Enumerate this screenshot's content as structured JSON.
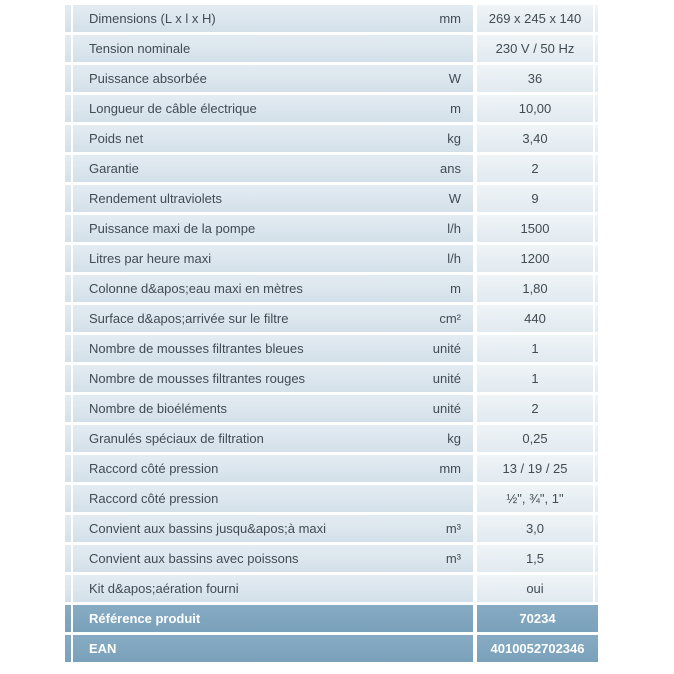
{
  "table": {
    "rows": [
      {
        "label": "Dimensions (L x l x H)",
        "unit": "mm",
        "value": "269 x 245 x 140"
      },
      {
        "label": "Tension nominale",
        "unit": "",
        "value": "230 V / 50 Hz"
      },
      {
        "label": "Puissance absorbée",
        "unit": "W",
        "value": "36"
      },
      {
        "label": "Longueur de câble électrique",
        "unit": "m",
        "value": "10,00"
      },
      {
        "label": "Poids net",
        "unit": "kg",
        "value": "3,40"
      },
      {
        "label": "Garantie",
        "unit": "ans",
        "value": "2"
      },
      {
        "label": "Rendement ultraviolets",
        "unit": "W",
        "value": "9"
      },
      {
        "label": "Puissance maxi de la pompe",
        "unit": "l/h",
        "value": "1500"
      },
      {
        "label": "Litres par heure maxi",
        "unit": "l/h",
        "value": "1200"
      },
      {
        "label": "Colonne d&apos;eau maxi en mètres",
        "unit": "m",
        "value": "1,80"
      },
      {
        "label": "Surface d&apos;arrivée sur le filtre",
        "unit": "cm²",
        "value": "440"
      },
      {
        "label": "Nombre de mousses filtrantes bleues",
        "unit": "unité",
        "value": "1"
      },
      {
        "label": "Nombre de mousses filtrantes rouges",
        "unit": "unité",
        "value": "1"
      },
      {
        "label": "Nombre de bioéléments",
        "unit": "unité",
        "value": "2"
      },
      {
        "label": "Granulés spéciaux de filtration",
        "unit": "kg",
        "value": "0,25"
      },
      {
        "label": "Raccord côté pression",
        "unit": "mm",
        "value": "13 / 19 / 25"
      },
      {
        "label": "Raccord côté pression",
        "unit": "",
        "value": "½\", ¾\", 1\""
      },
      {
        "label": "Convient aux bassins jusqu&apos;à maxi",
        "unit": "m³",
        "value": "3,0"
      },
      {
        "label": "Convient aux bassins avec poissons",
        "unit": "m³",
        "value": "1,5"
      },
      {
        "label": "Kit d&apos;aération fourni",
        "unit": "",
        "value": "oui"
      }
    ],
    "footer_rows": [
      {
        "label": "Référence produit",
        "value": "70234"
      },
      {
        "label": "EAN",
        "value": "4010052702346"
      }
    ],
    "colors": {
      "row_bg": "#d8e3ea",
      "value_bg": "#e7edf2",
      "footer_bg": "#7ea5bf",
      "text": "#414b53",
      "footer_text": "#ffffff"
    }
  }
}
